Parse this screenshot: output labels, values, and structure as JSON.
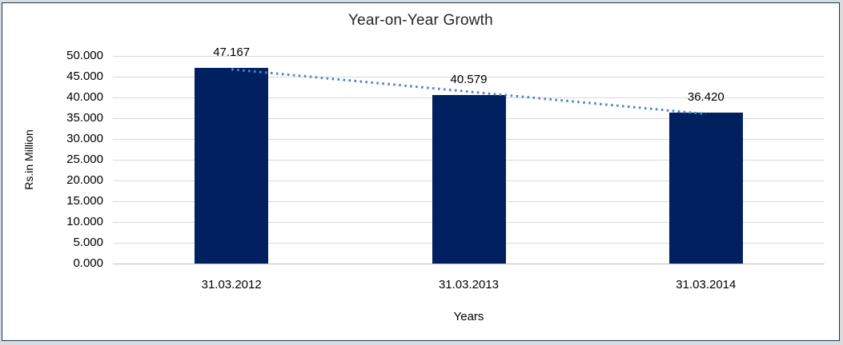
{
  "chart_data": {
    "type": "bar",
    "title": "Year-on-Year Growth",
    "categories": [
      "31.03.2012",
      "31.03.2013",
      "31.03.2014"
    ],
    "values": [
      47.167,
      40.579,
      36.42
    ],
    "data_labels": [
      "47.167",
      "40.579",
      "36.420"
    ],
    "xlabel": "Years",
    "ylabel": "Rs.in Million",
    "ylim": [
      0,
      50
    ],
    "ytick_step": 5,
    "ytick_labels": [
      "50.000",
      "45.000",
      "40.000",
      "35.000",
      "30.000",
      "25.000",
      "20.000",
      "15.000",
      "10.000",
      "5.000",
      "0.000"
    ],
    "grid": true,
    "legend": "none",
    "trendline": {
      "type": "linear",
      "style": "dotted"
    },
    "colors": {
      "bar": "#002060",
      "trendline": "#4e86c8",
      "gridline": "#d9d9d9",
      "axis_line": "#bfbfbf",
      "title_text": "#262626",
      "tick_text": "#000000",
      "frame_border": "#17375e",
      "outer_background": "#dbdbdb",
      "plot_background": "#ffffff"
    }
  }
}
